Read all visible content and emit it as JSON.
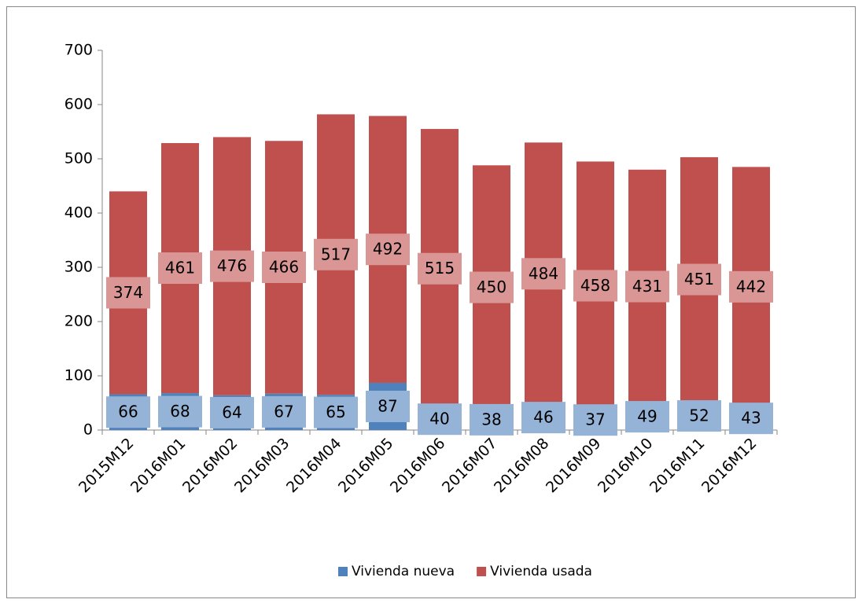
{
  "chart_data": {
    "type": "stacked_bar",
    "categories": [
      "2015M12",
      "2016M01",
      "2016M02",
      "2016M03",
      "2016M04",
      "2016M05",
      "2016M06",
      "2016M07",
      "2016M08",
      "2016M09",
      "2016M10",
      "2016M11",
      "2016M12"
    ],
    "series": [
      {
        "name": "Vivienda nueva",
        "color": "#4f81bd",
        "label_color": "#95b3d7",
        "values": [
          66,
          68,
          64,
          67,
          65,
          87,
          40,
          38,
          46,
          37,
          49,
          52,
          43
        ]
      },
      {
        "name": "Vivienda usada",
        "color": "#c0504d",
        "label_color": "#d99694",
        "values": [
          374,
          461,
          476,
          466,
          517,
          492,
          515,
          450,
          484,
          458,
          431,
          451,
          442
        ]
      }
    ],
    "ylim": [
      0,
      700
    ],
    "yticks": [
      0,
      100,
      200,
      300,
      400,
      500,
      600,
      700
    ],
    "legend": "bottom"
  }
}
